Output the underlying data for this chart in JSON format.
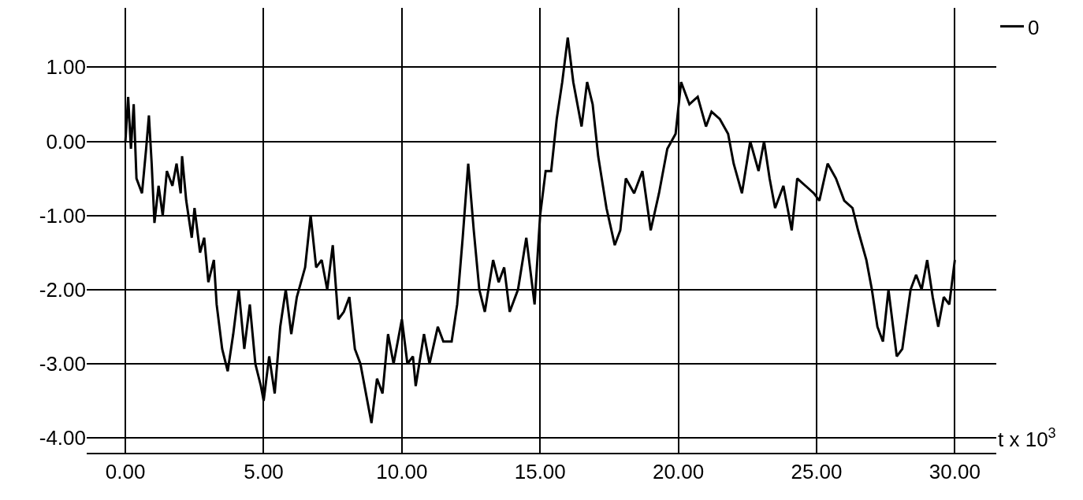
{
  "chart_data": {
    "type": "line",
    "xlabel": "t x 10$^{3}$",
    "xlim": [
      -1.4,
      31.5
    ],
    "ylim": [
      -4.2,
      1.8
    ],
    "xticks": [
      {
        "value": 0,
        "label": "0.00"
      },
      {
        "value": 5,
        "label": "5.00"
      },
      {
        "value": 10,
        "label": "10.00"
      },
      {
        "value": 15,
        "label": "15.00"
      },
      {
        "value": 20,
        "label": "20.00"
      },
      {
        "value": 25,
        "label": "25.00"
      },
      {
        "value": 30,
        "label": "30.00"
      }
    ],
    "yticks": [
      {
        "value": -4,
        "label": "-4.00"
      },
      {
        "value": -3,
        "label": "-3.00"
      },
      {
        "value": -2,
        "label": "-2.00"
      },
      {
        "value": -1,
        "label": "-1.00"
      },
      {
        "value": 0,
        "label": "0.00"
      },
      {
        "value": 1,
        "label": "1.00"
      }
    ],
    "grid": true,
    "legend": "top right",
    "marker": "none",
    "line_style": "solid",
    "x": [
      0.0,
      0.1,
      0.2,
      0.3,
      0.4,
      0.6,
      0.75,
      0.85,
      0.95,
      1.05,
      1.2,
      1.35,
      1.5,
      1.7,
      1.85,
      2.0,
      2.05,
      2.2,
      2.4,
      2.5,
      2.7,
      2.85,
      3.0,
      3.2,
      3.3,
      3.5,
      3.7,
      3.9,
      4.1,
      4.3,
      4.5,
      4.7,
      4.9,
      5.0,
      5.2,
      5.4,
      5.6,
      5.8,
      6.0,
      6.2,
      6.5,
      6.7,
      6.9,
      7.1,
      7.3,
      7.5,
      7.7,
      7.9,
      8.1,
      8.3,
      8.5,
      8.9,
      9.1,
      9.3,
      9.5,
      9.7,
      9.8,
      10.0,
      10.2,
      10.4,
      10.5,
      10.8,
      11.0,
      11.3,
      11.5,
      11.8,
      12.0,
      12.2,
      12.4,
      12.6,
      12.8,
      13.0,
      13.3,
      13.5,
      13.7,
      13.9,
      14.2,
      14.5,
      14.8,
      15.0,
      15.2,
      15.4,
      15.6,
      15.8,
      16.0,
      16.2,
      16.5,
      16.7,
      16.9,
      17.1,
      17.4,
      17.7,
      17.9,
      18.1,
      18.4,
      18.7,
      19.0,
      19.3,
      19.6,
      19.9,
      20.1,
      20.4,
      20.7,
      21.0,
      21.2,
      21.5,
      21.8,
      22.0,
      22.3,
      22.6,
      22.9,
      23.1,
      23.3,
      23.5,
      23.8,
      24.1,
      24.3,
      24.6,
      24.9,
      25.1,
      25.4,
      25.7,
      26.0,
      26.3,
      26.5,
      26.8,
      27.0,
      27.2,
      27.4,
      27.6,
      27.9,
      28.1,
      28.4,
      28.6,
      28.8,
      29.0,
      29.2,
      29.4,
      29.6,
      29.8,
      30.0
    ],
    "series": [
      {
        "name": "0",
        "color": "#000000",
        "values": [
          0.0,
          0.6,
          -0.1,
          0.5,
          -0.5,
          -0.7,
          -0.1,
          0.35,
          -0.3,
          -1.1,
          -0.6,
          -1.0,
          -0.4,
          -0.6,
          -0.3,
          -0.7,
          -0.2,
          -0.8,
          -1.3,
          -0.9,
          -1.5,
          -1.3,
          -1.9,
          -1.6,
          -2.2,
          -2.8,
          -3.1,
          -2.6,
          -2.0,
          -2.8,
          -2.2,
          -3.0,
          -3.3,
          -3.5,
          -2.9,
          -3.4,
          -2.5,
          -2.0,
          -2.6,
          -2.1,
          -1.7,
          -1.0,
          -1.7,
          -1.6,
          -2.0,
          -1.4,
          -2.4,
          -2.3,
          -2.1,
          -2.8,
          -3.0,
          -3.8,
          -3.2,
          -3.4,
          -2.6,
          -3.0,
          -2.8,
          -2.4,
          -3.0,
          -2.9,
          -3.3,
          -2.6,
          -3.0,
          -2.5,
          -2.7,
          -2.7,
          -2.2,
          -1.3,
          -0.3,
          -1.2,
          -2.0,
          -2.3,
          -1.6,
          -1.9,
          -1.7,
          -2.3,
          -2.0,
          -1.3,
          -2.2,
          -1.0,
          -0.4,
          -0.4,
          0.3,
          0.8,
          1.4,
          0.8,
          0.2,
          0.8,
          0.5,
          -0.2,
          -0.9,
          -1.4,
          -1.2,
          -0.5,
          -0.7,
          -0.4,
          -1.2,
          -0.7,
          -0.1,
          0.1,
          0.8,
          0.5,
          0.6,
          0.2,
          0.4,
          0.3,
          0.1,
          -0.3,
          -0.7,
          0.0,
          -0.4,
          0.0,
          -0.5,
          -0.9,
          -0.6,
          -1.2,
          -0.5,
          -0.6,
          -0.7,
          -0.8,
          -0.3,
          -0.5,
          -0.8,
          -0.9,
          -1.2,
          -1.6,
          -2.0,
          -2.5,
          -2.7,
          -2.0,
          -2.9,
          -2.8,
          -2.0,
          -1.8,
          -2.0,
          -1.6,
          -2.1,
          -2.5,
          -2.1,
          -2.2,
          -1.6
        ]
      }
    ]
  }
}
